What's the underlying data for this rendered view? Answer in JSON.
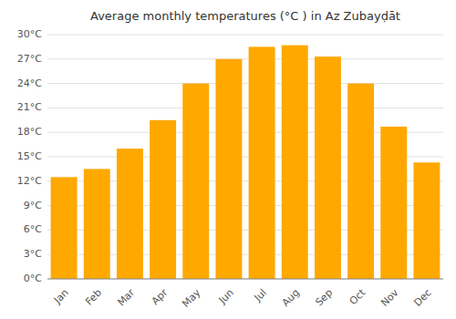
{
  "chart_data": {
    "type": "bar",
    "title": "Average monthly temperatures (°C ) in Az Zubayḍāt",
    "categories": [
      "Jan",
      "Feb",
      "Mar",
      "Apr",
      "May",
      "Jun",
      "Jul",
      "Aug",
      "Sep",
      "Oct",
      "Nov",
      "Dec"
    ],
    "values": [
      12.5,
      13.5,
      16.0,
      19.5,
      24.0,
      27.0,
      28.5,
      28.7,
      27.3,
      24.0,
      18.7,
      14.3
    ],
    "color": "#FFA800",
    "ylim": [
      0,
      30
    ],
    "yticks": [
      {
        "value": 0,
        "label": "0°C"
      },
      {
        "value": 3,
        "label": "3°C"
      },
      {
        "value": 6,
        "label": "6°C"
      },
      {
        "value": 9,
        "label": "9°C"
      },
      {
        "value": 12,
        "label": "12°C"
      },
      {
        "value": 15,
        "label": "15°C"
      },
      {
        "value": 18,
        "label": "18°C"
      },
      {
        "value": 21,
        "label": "21°C"
      },
      {
        "value": 24,
        "label": "24°C"
      },
      {
        "value": 27,
        "label": "27°C"
      },
      {
        "value": 30,
        "label": "30°C"
      }
    ],
    "grid": true
  }
}
